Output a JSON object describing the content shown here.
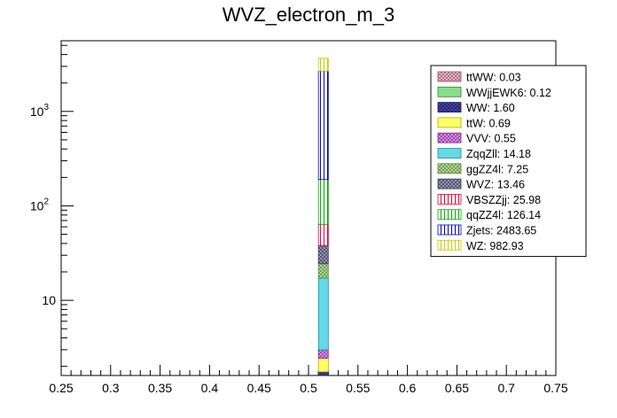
{
  "chart_data": {
    "type": "bar",
    "title": "WVZ_electron_m_3",
    "xlabel": "",
    "ylabel": "",
    "xlim": [
      0.25,
      0.75
    ],
    "ylim": [
      1.6,
      5600
    ],
    "y_scale": "log",
    "stacked": true,
    "grid": false,
    "legend_position": "top-right",
    "bin": [
      0.51,
      0.52
    ],
    "x_ticks": [
      "0.25",
      "0.3",
      "0.35",
      "0.4",
      "0.45",
      "0.5",
      "0.55",
      "0.6",
      "0.65",
      "0.7",
      "0.75"
    ],
    "y_ticks": [
      {
        "value": 10,
        "base": "10",
        "exp": ""
      },
      {
        "value": 100,
        "base": "10",
        "exp": "2"
      },
      {
        "value": 1000,
        "base": "10",
        "exp": "3"
      }
    ],
    "series": [
      {
        "name": "ttWW",
        "value": 0.03,
        "legend": "ttWW: 0.03",
        "color": "#a0506a",
        "fill": "#f0c8d0",
        "pattern": "cross"
      },
      {
        "name": "WWjjEWK6",
        "value": 0.12,
        "legend": "WWjjEWK6: 0.12",
        "color": "#2a8a2a",
        "fill": "#88dd88",
        "pattern": "solid"
      },
      {
        "name": "WW",
        "value": 1.6,
        "legend": "WW: 1.60",
        "color": "#1a1a6a",
        "fill": "#4a4a9a",
        "pattern": "cross"
      },
      {
        "name": "ttW",
        "value": 0.69,
        "legend": "ttW: 0.69",
        "color": "#b0b000",
        "fill": "#ffff66",
        "pattern": "solid"
      },
      {
        "name": "VVV",
        "value": 0.55,
        "legend": "VVV: 0.55",
        "color": "#8a2a9a",
        "fill": "#d9a0e6",
        "pattern": "cross"
      },
      {
        "name": "ZqqZll",
        "value": 14.18,
        "legend": "ZqqZll: 14.18",
        "color": "#1a8a9a",
        "fill": "#66d9e6",
        "pattern": "solid"
      },
      {
        "name": "ggZZ4l",
        "value": 7.25,
        "legend": "ggZZ4l: 7.25",
        "color": "#5a8a3a",
        "fill": "#bbe0a0",
        "pattern": "cross"
      },
      {
        "name": "WVZ",
        "value": 13.46,
        "legend": "WVZ: 13.46",
        "color": "#3a3a5a",
        "fill": "#a0a0b8",
        "pattern": "cross"
      },
      {
        "name": "VBSZZjj",
        "value": 25.98,
        "legend": "VBSZZjj: 25.98",
        "color": "#e0003a",
        "fill": "#ffffff",
        "pattern": "vlines"
      },
      {
        "name": "qqZZ4l",
        "value": 126.14,
        "legend": "qqZZ4l: 126.14",
        "color": "#00aa00",
        "fill": "#ffffff",
        "pattern": "vlines"
      },
      {
        "name": "Zjets",
        "value": 2483.65,
        "legend": "Zjets: 2483.65",
        "color": "#0000cc",
        "fill": "#ffffff",
        "pattern": "vlines"
      },
      {
        "name": "WZ",
        "value": 982.93,
        "legend": "WZ: 982.93",
        "color": "#c8c800",
        "fill": "#ffffff",
        "pattern": "vlines"
      }
    ]
  }
}
